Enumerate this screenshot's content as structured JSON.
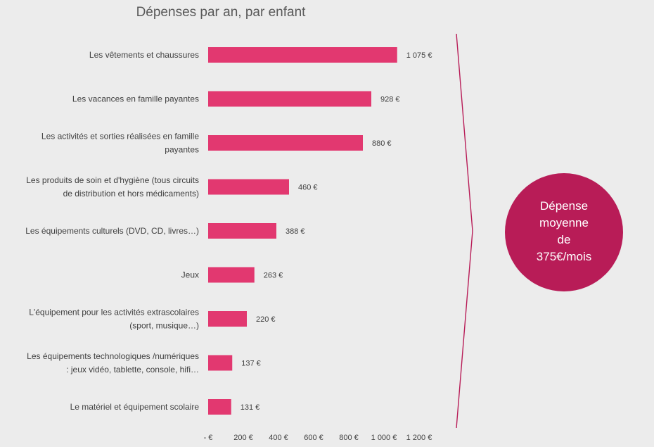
{
  "chart_data": {
    "type": "bar",
    "orientation": "horizontal",
    "title": "Dépenses par an, par enfant",
    "categories": [
      [
        "Les vêtements et chaussures"
      ],
      [
        "Les vacances en famille payantes"
      ],
      [
        "Les activités et sorties réalisées en famille",
        "payantes"
      ],
      [
        "Les produits de soin et d'hygiène (tous circuits",
        "de distribution et hors médicaments)"
      ],
      [
        "Les équipements culturels (DVD, CD, livres…)"
      ],
      [
        "Jeux"
      ],
      [
        "L'équipement pour les activités extrascolaires",
        "(sport, musique…)"
      ],
      [
        "Les équipements technologiques /numériques",
        ": jeux vidéo, tablette, console, hifi…"
      ],
      [
        "Le matériel et équipement scolaire"
      ]
    ],
    "values": [
      1075,
      928,
      880,
      460,
      388,
      263,
      220,
      137,
      131
    ],
    "value_labels": [
      "1 075 €",
      "928 €",
      "880 €",
      "460 €",
      "388 €",
      "263 €",
      "220 €",
      "137 €",
      "131 €"
    ],
    "xlim": [
      0,
      1200
    ],
    "xticks": [
      0,
      200,
      400,
      600,
      800,
      1000,
      1200
    ],
    "xtick_labels": [
      "-   €",
      "200 €",
      "400 €",
      "600 €",
      "800 €",
      "1 000 €",
      "1 200 €"
    ],
    "grid": false,
    "bar_color": "#e23870"
  },
  "summary": {
    "lines": [
      "Dépense",
      "moyenne",
      "de",
      "375€/mois"
    ],
    "circle_color": "#b81c57",
    "arrow_color": "#b81c57"
  }
}
